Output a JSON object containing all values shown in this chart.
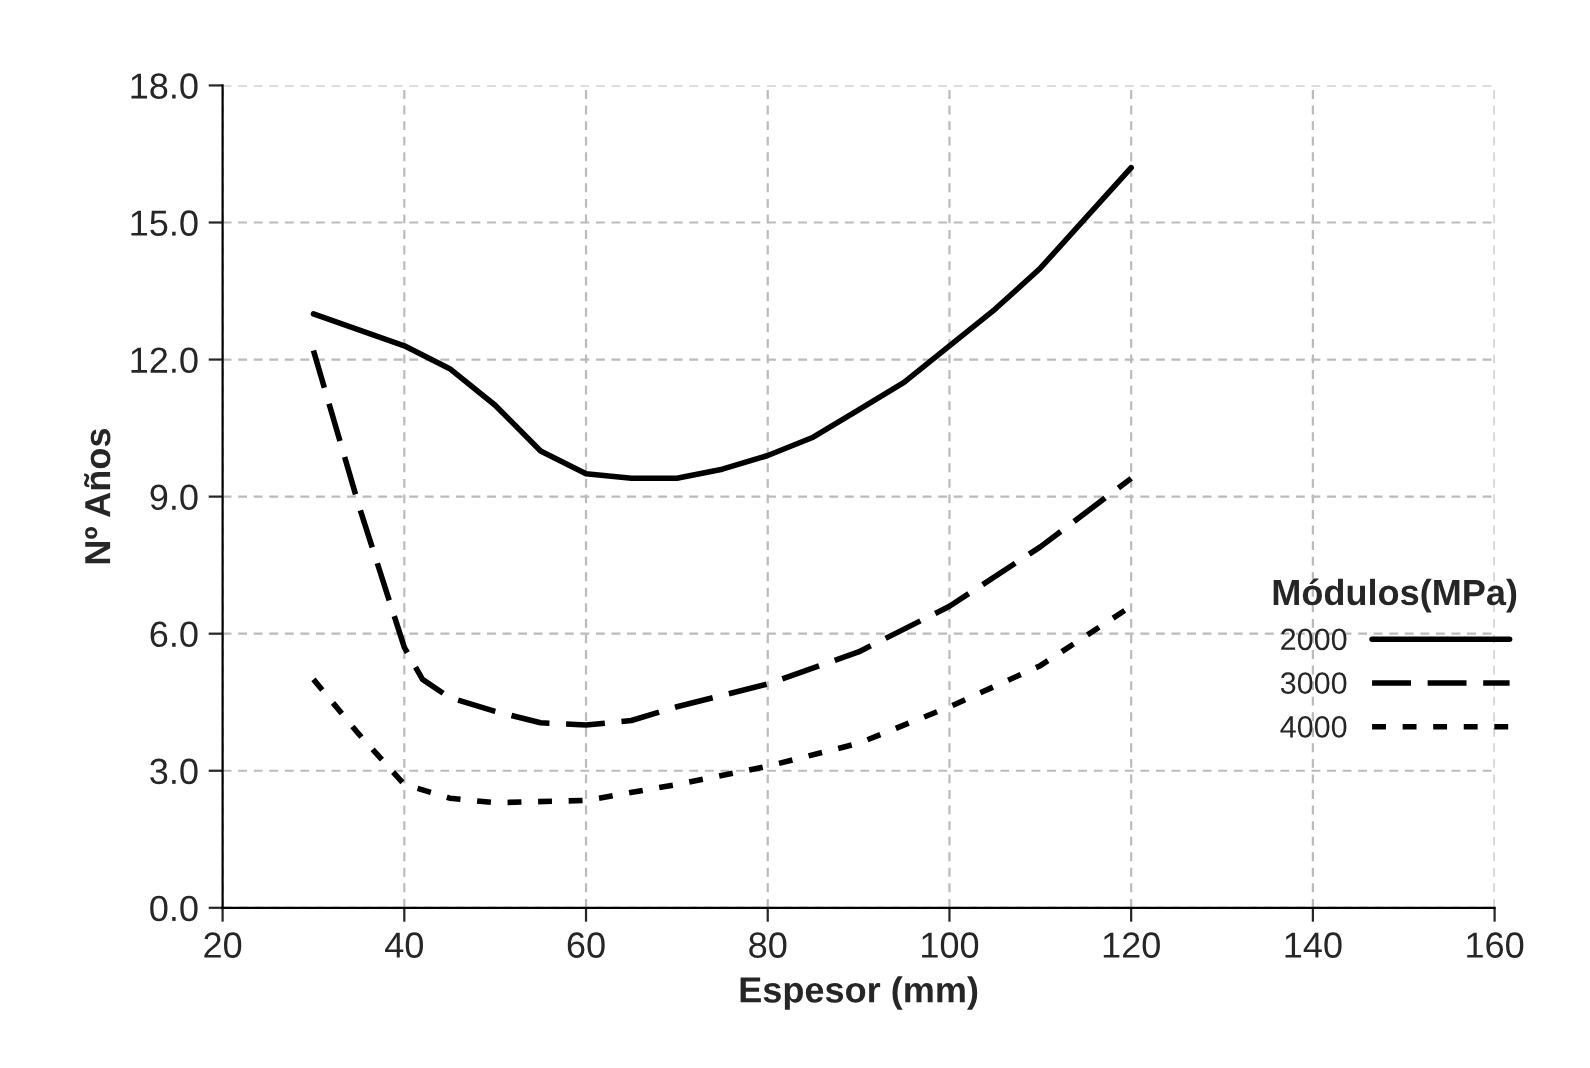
{
  "chart_data": {
    "type": "line",
    "xlabel": "Espesor (mm)",
    "ylabel": "Nº Años",
    "legend_title": "Módulos(MPa)",
    "legend": "right",
    "grid": true,
    "marker": "none",
    "xlim": [
      20,
      160
    ],
    "xticks": [
      20,
      40,
      60,
      80,
      100,
      120,
      140,
      160
    ],
    "ylim": [
      0,
      18
    ],
    "yticks": [
      {
        "value": 0,
        "label": "0.0"
      },
      {
        "value": 3,
        "label": "3.0"
      },
      {
        "value": 6,
        "label": "6.0"
      },
      {
        "value": 9,
        "label": "9.0"
      },
      {
        "value": 12,
        "label": "12.0"
      },
      {
        "value": 15,
        "label": "15.0"
      },
      {
        "value": 18,
        "label": "18.0"
      }
    ],
    "series": [
      {
        "name": "2000",
        "color": "#000000",
        "line_style": "solid",
        "x": [
          30,
          40,
          45,
          50,
          55,
          60,
          65,
          70,
          75,
          80,
          85,
          90,
          95,
          100,
          105,
          110,
          115,
          120
        ],
        "values": [
          13.0,
          12.3,
          11.8,
          11.0,
          10.0,
          9.5,
          9.4,
          9.4,
          9.6,
          9.9,
          10.3,
          10.9,
          11.5,
          12.3,
          13.1,
          14.0,
          15.1,
          16.2
        ]
      },
      {
        "name": "3000",
        "color": "#000000",
        "line_style": "dashed",
        "x": [
          30,
          35,
          40,
          42,
          45,
          50,
          55,
          60,
          65,
          70,
          80,
          90,
          100,
          110,
          120
        ],
        "values": [
          12.2,
          8.8,
          5.7,
          5.0,
          4.6,
          4.3,
          4.05,
          4.0,
          4.1,
          4.4,
          4.9,
          5.6,
          6.6,
          7.9,
          9.4
        ]
      },
      {
        "name": "4000",
        "color": "#000000",
        "line_style": "dotted",
        "x": [
          30,
          35,
          40,
          45,
          50,
          60,
          70,
          80,
          90,
          100,
          110,
          120
        ],
        "values": [
          5.0,
          3.8,
          2.7,
          2.4,
          2.3,
          2.35,
          2.7,
          3.1,
          3.6,
          4.4,
          5.3,
          6.6
        ]
      }
    ]
  }
}
